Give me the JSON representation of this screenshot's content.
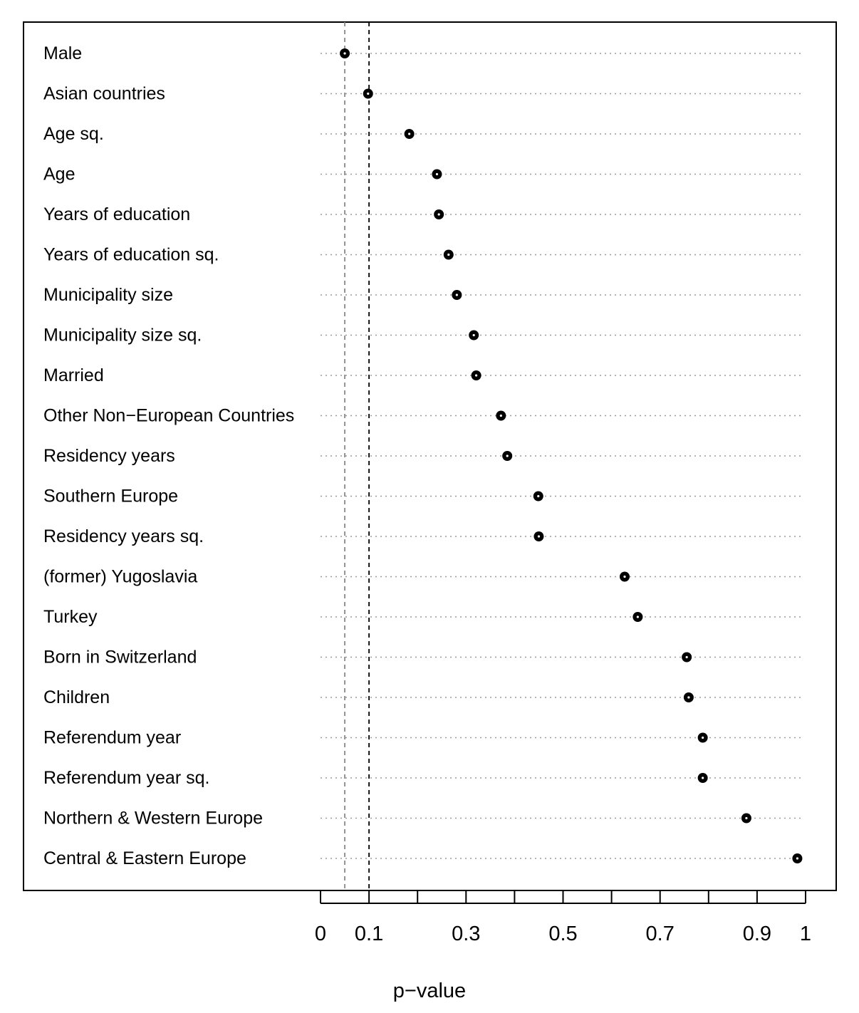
{
  "chart_data": {
    "type": "scatter",
    "xlabel": "p−value",
    "xlim": [
      0,
      1
    ],
    "x_ticks": [
      0,
      0.1,
      0.2,
      0.3,
      0.4,
      0.5,
      0.6,
      0.7,
      0.8,
      0.9,
      1
    ],
    "x_tick_labels": [
      "0",
      "0.1",
      "0.3",
      "0.5",
      "0.7",
      "0.9",
      "1"
    ],
    "x_tick_label_values": [
      0,
      0.1,
      0.3,
      0.5,
      0.7,
      0.9,
      1
    ],
    "reference_lines": [
      {
        "value": 0.05,
        "style": "dashed",
        "color": "#888888"
      },
      {
        "value": 0.1,
        "style": "dashed",
        "color": "#000000"
      }
    ],
    "grid": "dotted horizontal",
    "categories": [
      "Male",
      "Asian countries",
      "Age sq.",
      "Age",
      "Years of education",
      "Years of education sq.",
      "Municipality size",
      "Municipality size sq.",
      "Married",
      "Other Non−European Countries",
      "Residency years",
      "Southern Europe",
      "Residency years sq.",
      "(former) Yugoslavia",
      "Turkey",
      "Born in Switzerland",
      "Children",
      "Referendum year",
      "Referendum year sq.",
      "Northern & Western Europe",
      "Central & Eastern Europe"
    ],
    "values": [
      0.05,
      0.098,
      0.183,
      0.24,
      0.244,
      0.264,
      0.281,
      0.316,
      0.321,
      0.372,
      0.385,
      0.449,
      0.45,
      0.627,
      0.654,
      0.755,
      0.759,
      0.788,
      0.788,
      0.878,
      0.983
    ]
  }
}
